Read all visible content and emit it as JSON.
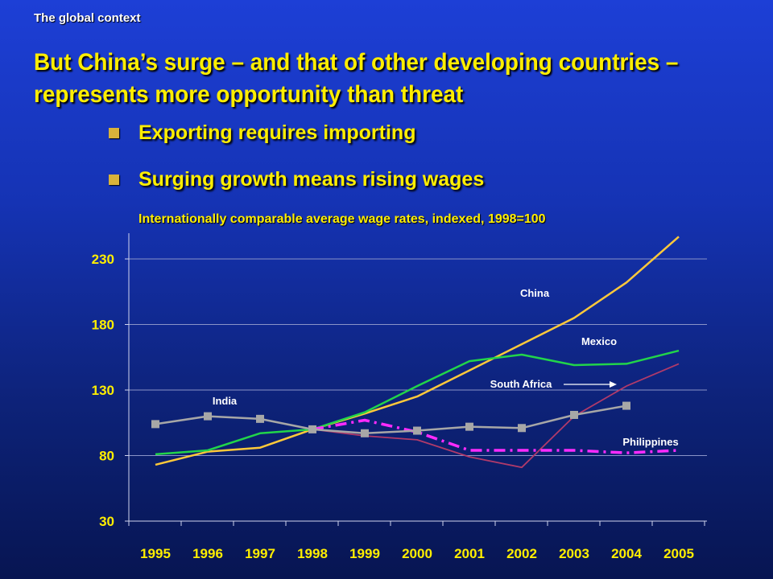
{
  "header": {
    "section_label": "The global context",
    "headline": "But China’s surge – and that of other developing countries – represents more opportunity than threat"
  },
  "bullets": [
    {
      "text": "Exporting requires importing"
    },
    {
      "text": "Surging growth means rising wages"
    }
  ],
  "colors": {
    "background": "#1533b4",
    "accent_text": "#ffee00",
    "bullet": "#d8b23a"
  },
  "chart_data": {
    "type": "line",
    "title": "Internationally comparable average wage rates, indexed, 1998=100",
    "xlabel": "",
    "ylabel": "",
    "x": [
      "1995",
      "1996",
      "1997",
      "1998",
      "1999",
      "2000",
      "2001",
      "2002",
      "2003",
      "2004",
      "2005"
    ],
    "yticks": [
      30,
      80,
      130,
      180,
      230
    ],
    "ylim": [
      30,
      250
    ],
    "grid": true,
    "series": [
      {
        "name": "China",
        "color": "#ffc93a",
        "dash": "",
        "marker": "",
        "values": [
          73,
          83,
          86,
          100,
          112,
          125,
          145,
          165,
          185,
          212,
          247
        ]
      },
      {
        "name": "Mexico",
        "color": "#22d44a",
        "dash": "",
        "marker": "",
        "values": [
          81,
          84,
          97,
          100,
          113,
          133,
          152,
          157,
          149,
          150,
          160
        ]
      },
      {
        "name": "South Africa",
        "color": "#b03a6a",
        "dash": "",
        "marker": "",
        "values": [
          null,
          null,
          108,
          100,
          95,
          92,
          79,
          71,
          110,
          133,
          150
        ]
      },
      {
        "name": "Philippines",
        "color": "#ff2bff",
        "dash": "14 6 3 6",
        "marker": "",
        "values": [
          null,
          null,
          null,
          100,
          107,
          98,
          84,
          84,
          84,
          82,
          84
        ]
      },
      {
        "name": "India",
        "color": "#a7a7a7",
        "dash": "",
        "marker": "square",
        "values": [
          104,
          110,
          108,
          100,
          97,
          99,
          102,
          101,
          111,
          118,
          null
        ]
      }
    ]
  }
}
